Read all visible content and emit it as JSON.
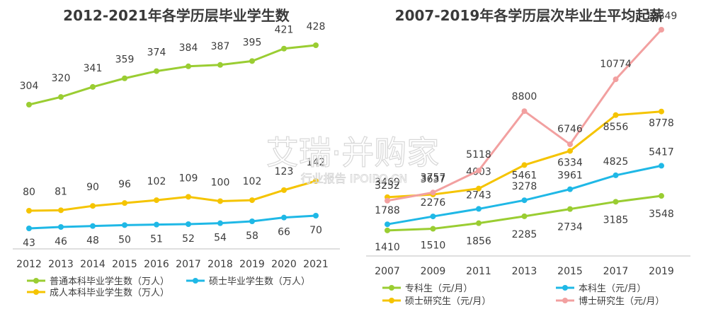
{
  "chart_data": [
    {
      "type": "line",
      "title": "2012-2021年各学历层毕业学生数",
      "x": [
        "2012",
        "2013",
        "2014",
        "2015",
        "2016",
        "2017",
        "2018",
        "2019",
        "2020",
        "2021"
      ],
      "series": [
        {
          "name": "普通本科毕业学生数（万人）",
          "color": "#9acd32",
          "values": [
            304,
            320,
            341,
            359,
            374,
            384,
            387,
            395,
            421,
            428
          ]
        },
        {
          "name": "成人本科毕业学生数（万人）",
          "color": "#f5c400",
          "values": [
            80,
            81,
            90,
            96,
            102,
            109,
            100,
            102,
            123,
            142
          ]
        },
        {
          "name": "硕士毕业学生数（万人）",
          "color": "#1fb8e6",
          "values": [
            43,
            46,
            48,
            50,
            51,
            52,
            54,
            58,
            66,
            70
          ]
        }
      ]
    },
    {
      "type": "line",
      "title": "2007-2019年各学历层次毕业生平均起薪",
      "x": [
        "2007",
        "2009",
        "2011",
        "2013",
        "2015",
        "2017",
        "2019"
      ],
      "series": [
        {
          "name": "专科生（元/月）",
          "color": "#9acd32",
          "values": [
            1410,
            1510,
            1856,
            2285,
            2734,
            3185,
            3548
          ]
        },
        {
          "name": "本科生（元/月）",
          "color": "#1fb8e6",
          "values": [
            1788,
            2276,
            2743,
            3278,
            3961,
            4825,
            5417
          ]
        },
        {
          "name": "硕士研究生（元/月）",
          "color": "#f5c400",
          "values": [
            3469,
            3637,
            4003,
            5461,
            6334,
            8556,
            8778
          ]
        },
        {
          "name": "博士研究生（元/月）",
          "color": "#f2a0a0",
          "values": [
            3252,
            3757,
            5118,
            8800,
            6746,
            10774,
            13849
          ]
        }
      ]
    }
  ],
  "watermark": {
    "main": "艾瑞·并购家",
    "sub": "行业报告 IPOIPO.CN"
  }
}
